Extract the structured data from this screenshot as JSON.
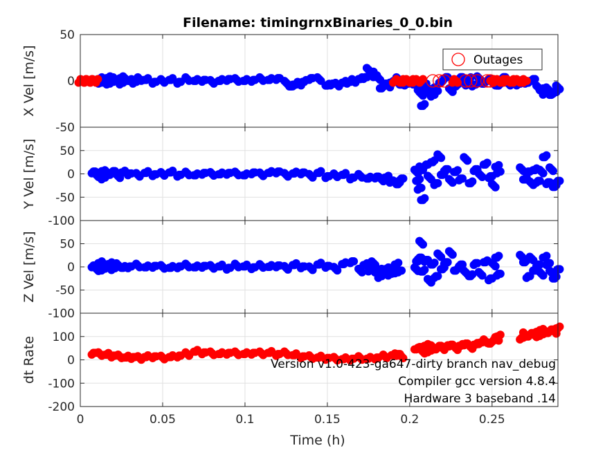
{
  "title": "Filename: timingrnxBinaries_0_0.bin",
  "xlabel": "Time (h)",
  "x_ticks": [
    "0",
    "0.05",
    "0.1",
    "0.15",
    "0.2",
    "0.25"
  ],
  "annotations": [
    "Version v1.0-423-ga647-dirty branch nav_debug",
    "Compiler gcc version 4.8.4",
    "Hardware 3 baseband .14"
  ],
  "colors": {
    "blue": "#0000ff",
    "red": "#ff0000",
    "grid": "#e0e0e0",
    "axis": "#262626"
  },
  "chart_data": [
    {
      "type": "scatter",
      "ylabel": "X Vel [m/s]",
      "xlim": [
        0,
        0.29
      ],
      "ylim": [
        -50,
        50
      ],
      "y_ticks": [
        "50",
        "0",
        "-50"
      ],
      "grid": true,
      "legend": {
        "entries": [
          "Outages"
        ],
        "placement": "top-right",
        "marker": "open-circle"
      },
      "series": [
        {
          "marker": "filled-circle",
          "color": "#0000ff",
          "x": [
            0.008,
            0.01,
            0.012,
            0.014,
            0.015,
            0.017,
            0.019,
            0.021,
            0.023,
            0.025,
            0.027,
            0.03,
            0.033,
            0.036,
            0.04,
            0.045,
            0.05,
            0.055,
            0.06,
            0.065,
            0.07,
            0.075,
            0.08,
            0.085,
            0.09,
            0.095,
            0.1,
            0.105,
            0.11,
            0.115,
            0.12,
            0.125,
            0.128,
            0.13,
            0.133,
            0.136,
            0.14,
            0.145,
            0.15,
            0.153,
            0.156,
            0.16,
            0.163,
            0.166,
            0.17,
            0.173,
            0.175,
            0.177,
            0.179,
            0.181,
            0.183,
            0.185,
            0.187,
            0.189,
            0.191,
            0.193,
            0.195,
            0.198,
            0.201,
            0.204,
            0.206,
            0.207,
            0.208,
            0.209,
            0.21,
            0.212,
            0.214,
            0.216,
            0.219,
            0.222,
            0.225,
            0.228,
            0.231,
            0.233,
            0.236,
            0.239,
            0.242,
            0.245,
            0.248,
            0.251,
            0.254,
            0.257,
            0.26,
            0.263,
            0.266,
            0.269,
            0.272,
            0.275,
            0.278,
            0.28,
            0.282,
            0.284,
            0.286,
            0.288,
            0.29
          ],
          "y": [
            1,
            -1,
            2,
            0,
            -2,
            3,
            -1,
            2,
            1,
            -2,
            3,
            0,
            -1,
            2,
            1,
            -1,
            0,
            1,
            -1,
            2,
            0,
            1,
            -1,
            0,
            2,
            1,
            0,
            1,
            2,
            1,
            3,
            -2,
            -6,
            -4,
            -3,
            -1,
            3,
            2,
            -5,
            -3,
            -4,
            -2,
            -1,
            0,
            2,
            4,
            12,
            8,
            6,
            3,
            -8,
            -3,
            -5,
            -2,
            0,
            2,
            -4,
            -3,
            -2,
            -4,
            -8,
            -14,
            -27,
            -3,
            -6,
            -12,
            -15,
            -9,
            -2,
            4,
            -10,
            -6,
            4,
            -3,
            2,
            -4,
            3,
            -3,
            2,
            -3,
            -5,
            4,
            -3,
            -2,
            -3,
            -1,
            -2,
            2,
            -7,
            -10,
            -13,
            -9,
            -15,
            -12,
            -7
          ]
        },
        {
          "name": "Outages",
          "marker": "filled-circle",
          "color": "#ff0000",
          "x": [
            0.0,
            0.0012,
            0.0024,
            0.0036,
            0.0048,
            0.006,
            0.0072,
            0.0084,
            0.0096,
            0.191,
            0.193,
            0.195,
            0.197,
            0.199,
            0.201,
            0.203,
            0.205,
            0.207,
            0.227,
            0.228,
            0.25,
            0.252,
            0.254,
            0.256,
            0.258,
            0.26,
            0.262,
            0.264,
            0.266,
            0.268,
            0.27
          ],
          "y": [
            0,
            0,
            0,
            0,
            0,
            0,
            0,
            0,
            0,
            0,
            0,
            0,
            0,
            0,
            0,
            0,
            0,
            0,
            0,
            0,
            0,
            0,
            0,
            0,
            0,
            0,
            0,
            0,
            0,
            0,
            0
          ]
        },
        {
          "name": "Outages",
          "marker": "open-circle",
          "color": "#ff0000",
          "x": [
            0.214,
            0.218,
            0.221,
            0.234,
            0.237,
            0.241,
            0.247,
            0.249
          ],
          "y": [
            0,
            0,
            0,
            0,
            0,
            0,
            0,
            0
          ]
        }
      ]
    },
    {
      "type": "scatter",
      "ylabel": "Y Vel [m/s]",
      "xlim": [
        0,
        0.29
      ],
      "ylim": [
        -100,
        100
      ],
      "y_ticks": [
        "50",
        "0",
        "-50",
        "-100"
      ],
      "grid": true,
      "series": [
        {
          "marker": "filled-circle",
          "color": "#0000ff",
          "x": [
            0.008,
            0.01,
            0.012,
            0.014,
            0.016,
            0.018,
            0.02,
            0.023,
            0.026,
            0.03,
            0.035,
            0.04,
            0.045,
            0.05,
            0.055,
            0.06,
            0.065,
            0.07,
            0.075,
            0.08,
            0.085,
            0.09,
            0.095,
            0.1,
            0.105,
            0.11,
            0.115,
            0.12,
            0.125,
            0.13,
            0.135,
            0.14,
            0.145,
            0.15,
            0.155,
            0.16,
            0.165,
            0.17,
            0.175,
            0.18,
            0.183,
            0.186,
            0.189,
            0.191,
            0.193,
            0.195,
            0.204,
            0.205,
            0.206,
            0.207,
            0.208,
            0.21,
            0.212,
            0.214,
            0.216,
            0.218,
            0.22,
            0.222,
            0.225,
            0.228,
            0.231,
            0.234,
            0.237,
            0.24,
            0.243,
            0.246,
            0.249,
            0.251,
            0.253,
            0.254,
            0.268,
            0.27,
            0.272,
            0.274,
            0.276,
            0.278,
            0.28,
            0.282,
            0.284,
            0.286,
            0.288,
            0.29
          ],
          "y": [
            5,
            -3,
            2,
            -8,
            4,
            -2,
            6,
            -5,
            3,
            1,
            -2,
            2,
            -1,
            0,
            3,
            -2,
            1,
            -3,
            2,
            0,
            -1,
            2,
            1,
            -3,
            3,
            -1,
            2,
            5,
            -2,
            1,
            3,
            -4,
            2,
            -5,
            -3,
            -2,
            -8,
            -4,
            -10,
            -6,
            -12,
            -8,
            -15,
            -18,
            -22,
            -10,
            5,
            -15,
            -30,
            12,
            -56,
            20,
            -8,
            25,
            -20,
            38,
            -2,
            10,
            -15,
            4,
            -10,
            32,
            -20,
            10,
            -3,
            20,
            -5,
            -25,
            15,
            5,
            10,
            -12,
            5,
            -20,
            8,
            -15,
            5,
            36,
            -18,
            10,
            -28,
            -15
          ]
        }
      ]
    },
    {
      "type": "scatter",
      "ylabel": "Z Vel [m/s]",
      "xlim": [
        0,
        0.29
      ],
      "ylim": [
        -100,
        100
      ],
      "y_ticks": [
        "50",
        "0",
        "-50",
        "-100"
      ],
      "grid": true,
      "series": [
        {
          "marker": "filled-circle",
          "color": "#0000ff",
          "x": [
            0.008,
            0.01,
            0.012,
            0.014,
            0.016,
            0.018,
            0.02,
            0.023,
            0.026,
            0.03,
            0.035,
            0.04,
            0.045,
            0.05,
            0.055,
            0.06,
            0.065,
            0.07,
            0.075,
            0.08,
            0.085,
            0.09,
            0.095,
            0.1,
            0.105,
            0.11,
            0.115,
            0.12,
            0.125,
            0.13,
            0.135,
            0.14,
            0.145,
            0.15,
            0.155,
            0.16,
            0.165,
            0.17,
            0.173,
            0.176,
            0.178,
            0.18,
            0.182,
            0.184,
            0.186,
            0.188,
            0.19,
            0.192,
            0.194,
            0.204,
            0.205,
            0.206,
            0.207,
            0.208,
            0.21,
            0.212,
            0.214,
            0.216,
            0.218,
            0.22,
            0.222,
            0.225,
            0.228,
            0.231,
            0.234,
            0.237,
            0.24,
            0.243,
            0.246,
            0.249,
            0.251,
            0.253,
            0.254,
            0.268,
            0.27,
            0.272,
            0.274,
            0.276,
            0.278,
            0.28,
            0.282,
            0.284,
            0.286,
            0.288,
            0.29
          ],
          "y": [
            3,
            -5,
            8,
            -4,
            2,
            6,
            -3,
            4,
            -2,
            1,
            3,
            -1,
            2,
            0,
            -2,
            1,
            3,
            -1,
            2,
            0,
            1,
            -2,
            3,
            1,
            -1,
            2,
            0,
            3,
            -2,
            4,
            1,
            -3,
            5,
            2,
            -4,
            6,
            12,
            -8,
            4,
            -6,
            8,
            -12,
            -20,
            -8,
            -5,
            -15,
            -10,
            5,
            -8,
            -5,
            12,
            20,
            52,
            -10,
            15,
            -30,
            5,
            -20,
            25,
            -5,
            10,
            30,
            -8,
            5,
            -12,
            -20,
            8,
            -15,
            10,
            -25,
            5,
            20,
            -15,
            22,
            10,
            -20,
            18,
            -8,
            5,
            -15,
            20,
            8,
            -12,
            -25,
            -5
          ]
        }
      ]
    },
    {
      "type": "scatter",
      "ylabel": "dt Rate",
      "xlim": [
        0,
        0.29
      ],
      "ylim": [
        -200,
        200
      ],
      "y_ticks": [
        "100",
        "0",
        "-100",
        "-200"
      ],
      "grid": true,
      "series": [
        {
          "marker": "filled-circle",
          "color": "#ff0000",
          "x": [
            0.008,
            0.012,
            0.016,
            0.02,
            0.024,
            0.028,
            0.032,
            0.036,
            0.04,
            0.045,
            0.05,
            0.055,
            0.06,
            0.065,
            0.07,
            0.075,
            0.08,
            0.085,
            0.09,
            0.095,
            0.1,
            0.105,
            0.11,
            0.115,
            0.12,
            0.125,
            0.13,
            0.135,
            0.14,
            0.145,
            0.15,
            0.155,
            0.16,
            0.165,
            0.17,
            0.175,
            0.18,
            0.185,
            0.19,
            0.193,
            0.195,
            0.204,
            0.206,
            0.208,
            0.21,
            0.212,
            0.214,
            0.216,
            0.218,
            0.22,
            0.222,
            0.225,
            0.228,
            0.231,
            0.234,
            0.237,
            0.24,
            0.243,
            0.246,
            0.249,
            0.251,
            0.253,
            0.254,
            0.268,
            0.27,
            0.272,
            0.274,
            0.276,
            0.278,
            0.28,
            0.282,
            0.284,
            0.286,
            0.288,
            0.29
          ],
          "y": [
            30,
            25,
            22,
            18,
            15,
            10,
            12,
            8,
            12,
            15,
            10,
            12,
            18,
            25,
            35,
            32,
            28,
            25,
            30,
            28,
            25,
            30,
            28,
            30,
            25,
            28,
            20,
            15,
            12,
            10,
            8,
            5,
            3,
            5,
            8,
            5,
            10,
            15,
            20,
            25,
            15,
            45,
            55,
            35,
            60,
            40,
            55,
            45,
            60,
            50,
            55,
            65,
            50,
            60,
            70,
            55,
            65,
            75,
            80,
            70,
            85,
            90,
            100,
            95,
            110,
            100,
            115,
            105,
            120,
            110,
            125,
            115,
            130,
            120,
            135
          ]
        }
      ]
    }
  ]
}
